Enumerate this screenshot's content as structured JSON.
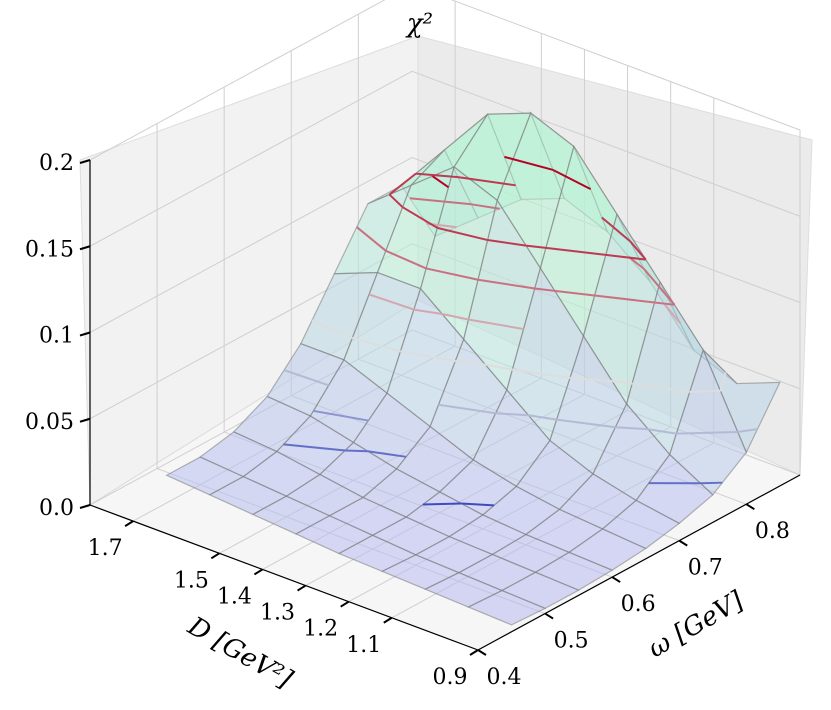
{
  "chart_data": {
    "type": "surface3d",
    "title": "",
    "zlabel": "χ²",
    "xlabel": "ω [GeV]",
    "ylabel": "D [GeV²]",
    "x_ticks": [
      "0.4",
      "0.5",
      "0.6",
      "0.7",
      "0.8"
    ],
    "y_ticks": [
      "0.9",
      "1.1",
      "1.2",
      "1.3",
      "1.4",
      "1.5",
      "1.7"
    ],
    "z_ticks": [
      "0.0",
      "0.05",
      "0.1",
      "0.15",
      "0.2"
    ],
    "xlim": [
      0.4,
      0.88
    ],
    "ylim": [
      0.9,
      1.8
    ],
    "zlim": [
      0,
      0.2
    ],
    "grid": true,
    "colors": {
      "surface_low": "#b8b8f2",
      "surface_high": "#b8f2d6",
      "contour_low": "#3b4cc0",
      "contour_high": "#b40426"
    },
    "x": [
      0.45,
      0.5,
      0.55,
      0.6,
      0.65,
      0.7,
      0.75,
      0.8,
      0.85
    ],
    "y": [
      0.9,
      1.0,
      1.1,
      1.2,
      1.3,
      1.4,
      1.5,
      1.6,
      1.7
    ],
    "chi2": [
      [
        0.004,
        0.003,
        0.003,
        0.004,
        0.006,
        0.01,
        0.016,
        0.03,
        0.06
      ],
      [
        0.005,
        0.004,
        0.004,
        0.005,
        0.008,
        0.014,
        0.03,
        0.08,
        0.05
      ],
      [
        0.006,
        0.005,
        0.005,
        0.006,
        0.01,
        0.02,
        0.05,
        0.11,
        0.06
      ],
      [
        0.007,
        0.006,
        0.006,
        0.008,
        0.014,
        0.03,
        0.08,
        0.14,
        0.09
      ],
      [
        0.008,
        0.008,
        0.008,
        0.012,
        0.02,
        0.05,
        0.11,
        0.17,
        0.11
      ],
      [
        0.01,
        0.01,
        0.01,
        0.016,
        0.03,
        0.07,
        0.14,
        0.18,
        0.12
      ],
      [
        0.012,
        0.012,
        0.014,
        0.022,
        0.04,
        0.09,
        0.15,
        0.17,
        0.11
      ],
      [
        0.014,
        0.014,
        0.018,
        0.028,
        0.05,
        0.09,
        0.13,
        0.14,
        0.09
      ],
      [
        0.016,
        0.016,
        0.02,
        0.03,
        0.05,
        0.08,
        0.11,
        0.11,
        0.07
      ]
    ],
    "contour_levels": [
      0.01,
      0.02,
      0.03,
      0.04,
      0.06,
      0.08,
      0.1,
      0.12,
      0.14
    ]
  }
}
